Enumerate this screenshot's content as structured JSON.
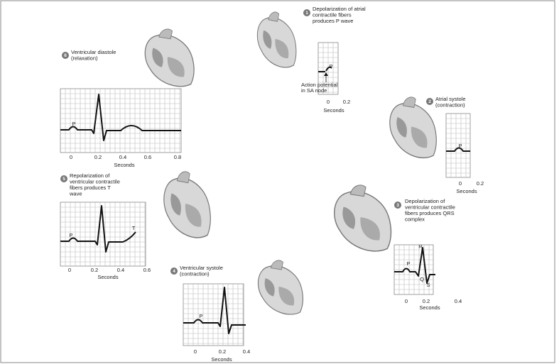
{
  "steps": [
    {
      "number": "1",
      "caption": [
        "Depolarization of atrial",
        "contractile fibers",
        "produces P wave"
      ],
      "annotation": [
        "Action potential",
        "in SA node"
      ],
      "wave_labels": [
        "P"
      ],
      "ticks": [
        "0",
        "0.2"
      ],
      "axis_label": "Seconds"
    },
    {
      "number": "2",
      "caption": [
        "Atrial systole",
        "(contraction)"
      ],
      "wave_labels": [
        "P"
      ],
      "ticks": [
        "0",
        "0.2"
      ],
      "axis_label": "Seconds"
    },
    {
      "number": "3",
      "caption": [
        "Depolarization of",
        "ventricular contractile",
        "fibers produces QRS",
        "complex"
      ],
      "wave_labels": [
        "P",
        "R",
        "Q",
        "S"
      ],
      "ticks": [
        "0",
        "0.2",
        "0.4"
      ],
      "axis_label": "Seconds"
    },
    {
      "number": "4",
      "caption": [
        "Ventricular systole",
        "(contraction)"
      ],
      "wave_labels": [
        "P"
      ],
      "ticks": [
        "0",
        "0.2",
        "0.4"
      ],
      "axis_label": "Seconds"
    },
    {
      "number": "5",
      "caption": [
        "Repolarization of",
        "ventricular contractile",
        "fibers produces T",
        "wave"
      ],
      "wave_labels": [
        "P",
        "T"
      ],
      "ticks": [
        "0",
        "0.2",
        "0.4",
        "0.6"
      ],
      "axis_label": "Seconds"
    },
    {
      "number": "6",
      "caption": [
        "Ventricular diastole",
        "(relaxation)"
      ],
      "wave_labels": [
        "P"
      ],
      "ticks": [
        "0",
        "0.2",
        "0.4",
        "0.6",
        "0.8"
      ],
      "axis_label": "Seconds"
    }
  ]
}
